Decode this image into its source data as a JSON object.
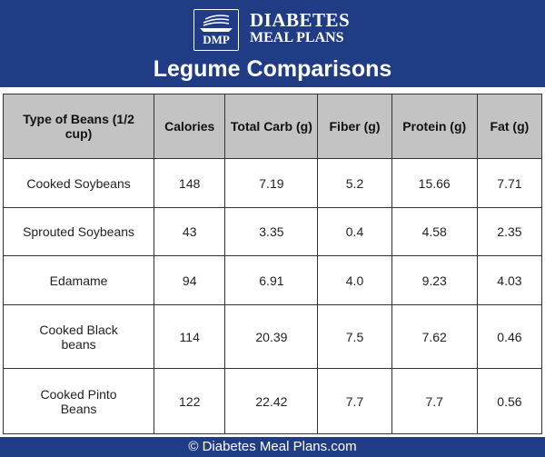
{
  "brand": {
    "line1": "DIABETES",
    "line2": "MEAL PLANS",
    "badge": "DMP",
    "colors": {
      "primary": "#1f3c85",
      "header_bg": "#c3c3c3"
    }
  },
  "title": "Legume Comparisons",
  "table": {
    "headers": [
      "Type of Beans (1/2 cup)",
      "Calories",
      "Total Carb (g)",
      "Fiber (g)",
      "Protein (g)",
      "Fat (g)"
    ],
    "rows": [
      [
        "Cooked Soybeans",
        "148",
        "7.19",
        "5.2",
        "15.66",
        "7.71"
      ],
      [
        "Sprouted Soybeans",
        "43",
        "3.35",
        "0.4",
        "4.58",
        "2.35"
      ],
      [
        "Edamame",
        "94",
        "6.91",
        "4.0",
        "9.23",
        "4.03"
      ],
      [
        "Cooked Black beans",
        "114",
        "20.39",
        "7.5",
        "7.62",
        "0.46"
      ],
      [
        "Cooked Pinto Beans",
        "122",
        "22.42",
        "7.7",
        "7.7",
        "0.56"
      ]
    ]
  },
  "footer": "© Diabetes Meal Plans.com"
}
